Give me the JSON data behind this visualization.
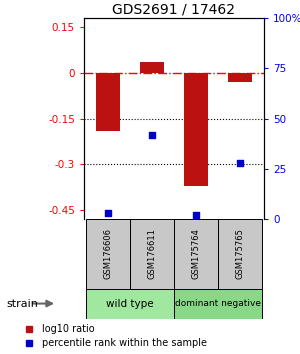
{
  "title": "GDS2691 / 17462",
  "samples": [
    "GSM176606",
    "GSM176611",
    "GSM175764",
    "GSM175765"
  ],
  "log10_ratio": [
    -0.19,
    0.035,
    -0.37,
    -0.03
  ],
  "percentile_rank": [
    3,
    42,
    2,
    28
  ],
  "group_defs": [
    {
      "indices": [
        0,
        1
      ],
      "label": "wild type",
      "color": "#a0e8a0"
    },
    {
      "indices": [
        2,
        3
      ],
      "label": "dominant negative",
      "color": "#88d888"
    }
  ],
  "ylim_left": [
    -0.48,
    0.18
  ],
  "ylim_right": [
    0,
    100
  ],
  "yticks_left": [
    0.15,
    0,
    -0.15,
    -0.3,
    -0.45
  ],
  "ytick_left_labels": [
    "0.15",
    "0",
    "-0.15",
    "-0.3",
    "-0.45"
  ],
  "yticks_right": [
    100,
    75,
    50,
    25,
    0
  ],
  "ytick_right_labels": [
    "100%",
    "75",
    "50",
    "25",
    "0"
  ],
  "bar_color": "#bb1111",
  "dot_color": "#0000cc",
  "dotted_lines": [
    -0.15,
    -0.3
  ],
  "bar_width": 0.55,
  "sample_box_color": "#c8c8c8",
  "wild_type_color": "#a8e8a0",
  "dominant_neg_color": "#80d880",
  "legend_red_label": "log10 ratio",
  "legend_blue_label": "percentile rank within the sample",
  "strain_label": "strain"
}
